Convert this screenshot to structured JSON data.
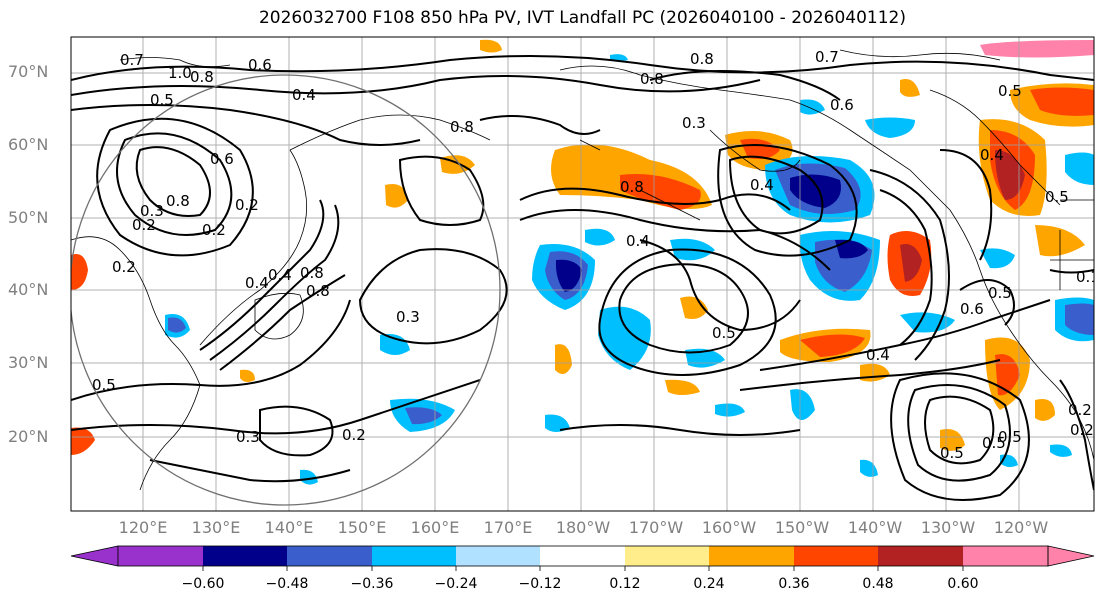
{
  "title": "2026032700 F108 850 hPa PV, IVT Landfall PC (2026040100 - 2026040112)",
  "lat_labels": [
    "70°N",
    "60°N",
    "50°N",
    "40°N",
    "30°N",
    "20°N"
  ],
  "lon_labels": [
    "120°E",
    "130°E",
    "140°E",
    "150°E",
    "160°E",
    "170°E",
    "180°W",
    "170°W",
    "160°W",
    "150°W",
    "140°W",
    "130°W",
    "120°W"
  ],
  "colorbar": {
    "colors": [
      "#9932cc",
      "#00008b",
      "#3a5fcd",
      "#00bfff",
      "#b0e2ff",
      "#ffffff",
      "#ffec8b",
      "#ffa500",
      "#ff4500",
      "#b22222",
      "#ff82ab"
    ],
    "ticks": [
      "−0.60",
      "−0.48",
      "−0.36",
      "−0.24",
      "−0.12",
      "0.12",
      "0.24",
      "0.36",
      "0.48",
      "0.60"
    ]
  },
  "contour_labels": [
    "0.6",
    "0.8",
    "0.8",
    "0.7",
    "1.0",
    "0.8",
    "0.5",
    "0.4",
    "0.6",
    "0.8",
    "0.3",
    "0.6",
    "0.5",
    "0.4",
    "0.5",
    "0.8",
    "0.2",
    "0.3",
    "0.8",
    "0.4",
    "0.2",
    "0.2",
    "0.4",
    "0.8",
    "0.3",
    "0.5",
    "0.4",
    "0.6",
    "0.5",
    "0.3",
    "0.2",
    "0.5",
    "0.5",
    "0.5",
    "0.2",
    "0.5",
    "0.7",
    "0.4",
    "0.1",
    "0.8",
    "0.2",
    "0.2",
    "0.4"
  ]
}
